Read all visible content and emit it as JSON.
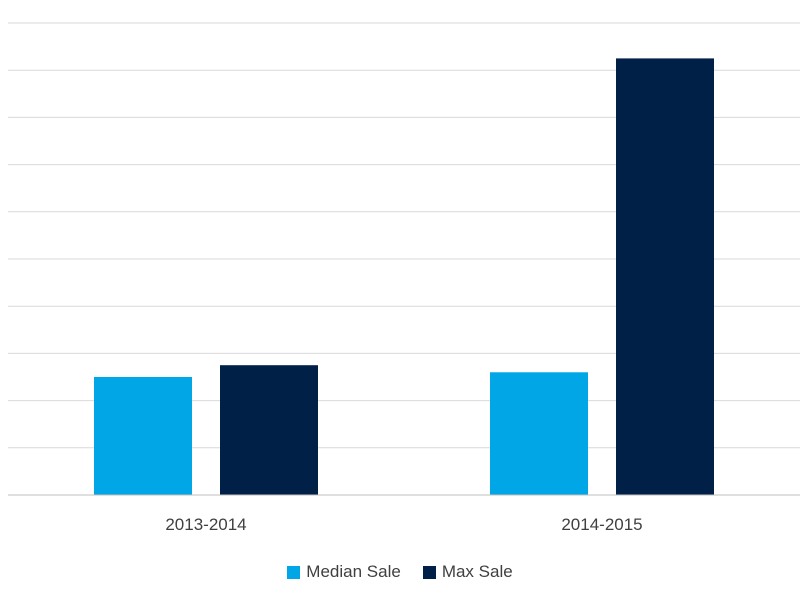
{
  "chart_data": {
    "type": "bar",
    "title": "",
    "xlabel": "",
    "ylabel": "",
    "categories": [
      "2013-2014",
      "2014-2015"
    ],
    "series": [
      {
        "name": "Median Sale",
        "color": "#00a6e6",
        "values": [
          25,
          26
        ]
      },
      {
        "name": "Max Sale",
        "color": "#002048",
        "values": [
          27.5,
          92.5
        ]
      }
    ],
    "ylim": [
      0,
      100
    ],
    "grid": true,
    "y_tick_labels_visible": false,
    "legend_position": "bottom"
  }
}
